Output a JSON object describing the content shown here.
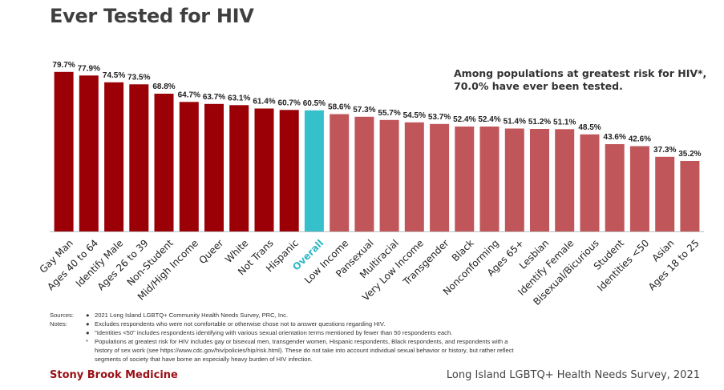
{
  "title": "Ever Tested for HIV",
  "callout": {
    "line1": "Among populations at greatest risk for HIV*,",
    "line2": "70.0% have ever been tested."
  },
  "colors": {
    "dark_red": "#9a0006",
    "light_red": "#c0565a",
    "overall": "#35c0cc",
    "overall_label": "#2db7c4",
    "brand": "#9a0f14"
  },
  "chart_data": {
    "type": "bar",
    "categories": [
      "Gay Man",
      "Ages 40 to 64",
      "Identify Male",
      "Ages 26 to 39",
      "Non-Student",
      "Mid/High Income",
      "Queer",
      "White",
      "Not Trans",
      "Hispanic",
      "Overall",
      "Low Income",
      "Pansexual",
      "Multiracial",
      "Very Low Income",
      "Transgender",
      "Black",
      "Nonconforming",
      "Ages 65+",
      "Lesbian",
      "Identify Female",
      "Bisexual/Bicurious",
      "Student",
      "Identities <50",
      "Asian",
      "Ages 18 to 25"
    ],
    "values": [
      79.7,
      77.9,
      74.5,
      73.5,
      68.8,
      64.7,
      63.7,
      63.1,
      61.4,
      60.7,
      60.5,
      58.6,
      57.3,
      55.7,
      54.5,
      53.7,
      52.4,
      52.4,
      51.4,
      51.2,
      51.1,
      48.5,
      43.6,
      42.6,
      37.3,
      35.2
    ],
    "value_labels": [
      "79.7%",
      "77.9%",
      "74.5%",
      "73.5%",
      "68.8%",
      "64.7%",
      "63.7%",
      "63.1%",
      "61.4%",
      "60.7%",
      "60.5%",
      "58.6%",
      "57.3%",
      "55.7%",
      "54.5%",
      "53.7%",
      "52.4%",
      "52.4%",
      "51.4%",
      "51.2%",
      "51.1%",
      "48.5%",
      "43.6%",
      "42.6%",
      "37.3%",
      "35.2%"
    ],
    "groups": [
      "above",
      "above",
      "above",
      "above",
      "above",
      "above",
      "above",
      "above",
      "above",
      "above",
      "overall",
      "below",
      "below",
      "below",
      "below",
      "below",
      "below",
      "below",
      "below",
      "below",
      "below",
      "below",
      "below",
      "below",
      "below",
      "below"
    ],
    "ylim": [
      0,
      100
    ],
    "xlabel": "",
    "ylabel": "",
    "grid": false
  },
  "notes": {
    "sources_label": "Sources:",
    "notes_label": "Notes:",
    "rows": [
      {
        "bullet": "●",
        "text": "2021 Long Island LGBTQ+ Community Health Needs Survey, PRC, Inc."
      },
      {
        "bullet": "●",
        "text": "Excludes respondents who were not comfortable or otherwise chose not to answer questions regarding HIV."
      },
      {
        "bullet": "●",
        "text": "\"Identities <50\" includes respondents identifying with various sexual orientation terms mentioned by fewer than 50 respondents each."
      },
      {
        "bullet": "*",
        "text": "Populations at greatest risk for HIV includes gay or bisexual men, transgender women, Hispanic respondents, Black respondents, and respondents with a"
      },
      {
        "bullet": "",
        "text": "history of sex work (see https://www.cdc.gov/hiv/policies/hip/risk.html). These do not take into account individual sexual behavior or history, but rather reflect"
      },
      {
        "bullet": "",
        "text": "segments of society that have borne an especially heavy burden of HIV infection."
      }
    ]
  },
  "footer": {
    "left": "Stony Brook Medicine",
    "right": "Long Island LGBTQ+ Health Needs Survey, 2021"
  }
}
